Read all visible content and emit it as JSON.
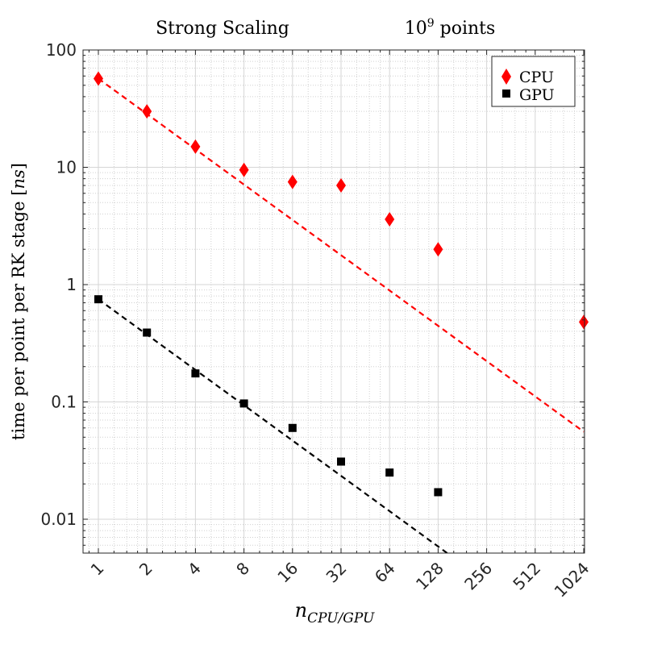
{
  "chart_data": {
    "type": "scatter",
    "title_left": "Strong Scaling",
    "title_right_base": "10",
    "title_right_exp": "9",
    "title_right_suffix": " points",
    "xlabel_base": "n",
    "xlabel_sub": "CPU/GPU",
    "ylabel_text": "time per point per RK stage [",
    "ylabel_unit": "ns",
    "ylabel_close": "]",
    "x_scale": "log2",
    "y_scale": "log10",
    "xlim": [
      0.8,
      1024
    ],
    "ylim": [
      0.005,
      100
    ],
    "grid": true,
    "legend_position": "top-right",
    "x_ticks": [
      1,
      2,
      4,
      8,
      16,
      32,
      64,
      128,
      256,
      512,
      1024
    ],
    "x_tick_labels": [
      "1",
      "2",
      "4",
      "8",
      "16",
      "32",
      "64",
      "128",
      "256",
      "512",
      "1024"
    ],
    "y_ticks": [
      0.01,
      0.1,
      1,
      10,
      100
    ],
    "y_tick_labels": [
      "0.01",
      "0.1",
      "1",
      "10",
      "100"
    ],
    "series": [
      {
        "name": "CPU",
        "marker": "diamond",
        "color": "#ff0000",
        "x": [
          1,
          2,
          4,
          8,
          16,
          32,
          64,
          128,
          1024
        ],
        "y": [
          57,
          30,
          15,
          9.5,
          7.5,
          7,
          3.6,
          2,
          0.48
        ]
      },
      {
        "name": "GPU",
        "marker": "square",
        "color": "#000000",
        "x": [
          1,
          2,
          4,
          8,
          16,
          32,
          64,
          128
        ],
        "y": [
          0.75,
          0.39,
          0.175,
          0.097,
          0.06,
          0.031,
          0.025,
          0.017
        ]
      }
    ],
    "ideal_lines": [
      {
        "color": "#ff0000",
        "style": "dashed",
        "x": [
          1,
          1024
        ],
        "y": [
          57,
          0.0557
        ]
      },
      {
        "color": "#000000",
        "style": "dashed",
        "x": [
          1,
          1024
        ],
        "y": [
          0.75,
          0.000732
        ]
      }
    ]
  }
}
